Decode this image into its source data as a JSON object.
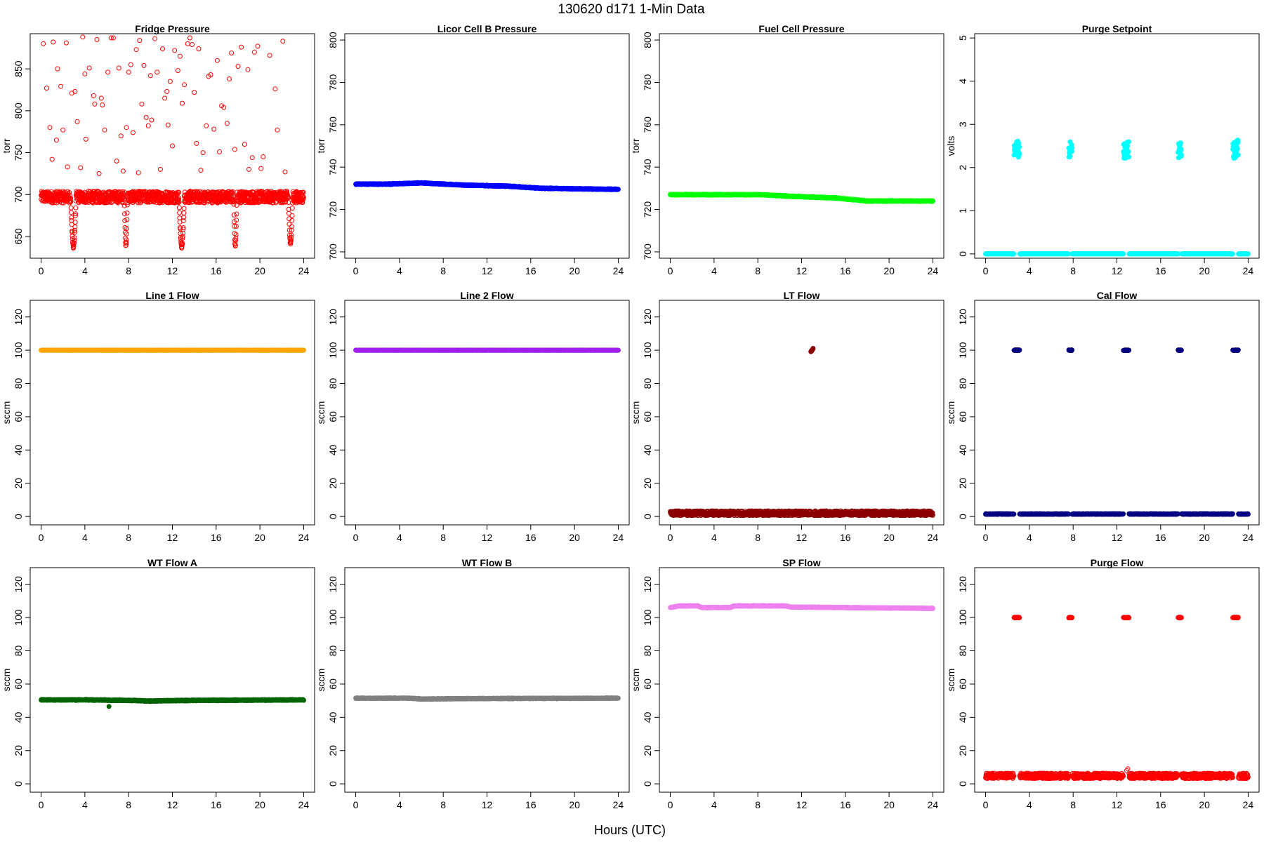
{
  "figure": {
    "title": "130620    d171    1-Min Data",
    "xlabel": "Hours (UTC)"
  },
  "chart_data": [
    {
      "type": "scatter",
      "title": "Fridge Pressure",
      "ylabel": "torr",
      "color": "#ff0000",
      "marker": "open",
      "xlim": [
        -1,
        25
      ],
      "ylim": [
        624,
        892
      ],
      "xticks": [
        0,
        4,
        8,
        12,
        16,
        20,
        24
      ],
      "yticks": [
        650,
        700,
        750,
        800,
        850
      ],
      "pattern": {
        "base": 697,
        "noise": 7,
        "noise_kind": "uniform",
        "dips": [
          {
            "start": 2.7,
            "end": 3.2,
            "min": 638
          },
          {
            "start": 7.6,
            "end": 7.9,
            "min": 640
          },
          {
            "start": 12.6,
            "end": 13.1,
            "min": 638
          },
          {
            "start": 17.6,
            "end": 17.9,
            "min": 640
          },
          {
            "start": 22.6,
            "end": 23.0,
            "min": 642
          }
        ],
        "outliers": [
          [
            0.2,
            880
          ],
          [
            0.5,
            827
          ],
          [
            0.8,
            780
          ],
          [
            1.0,
            742
          ],
          [
            1.1,
            882
          ],
          [
            1.4,
            765
          ],
          [
            1.5,
            850
          ],
          [
            1.8,
            829
          ],
          [
            2.0,
            777
          ],
          [
            2.3,
            881
          ],
          [
            2.4,
            733
          ],
          [
            2.8,
            821
          ],
          [
            3.1,
            823
          ],
          [
            3.3,
            787
          ],
          [
            3.6,
            732
          ],
          [
            3.8,
            888
          ],
          [
            4.0,
            844
          ],
          [
            4.1,
            766
          ],
          [
            4.4,
            851
          ],
          [
            4.8,
            818
          ],
          [
            4.9,
            808
          ],
          [
            5.1,
            885
          ],
          [
            5.3,
            725
          ],
          [
            5.5,
            815
          ],
          [
            5.6,
            807
          ],
          [
            5.8,
            777
          ],
          [
            6.1,
            846
          ],
          [
            6.4,
            887
          ],
          [
            6.6,
            887
          ],
          [
            6.9,
            740
          ],
          [
            7.1,
            851
          ],
          [
            7.3,
            770
          ],
          [
            7.5,
            728
          ],
          [
            7.8,
            780
          ],
          [
            8.0,
            846
          ],
          [
            8.2,
            855
          ],
          [
            8.4,
            774
          ],
          [
            8.7,
            873
          ],
          [
            8.9,
            726
          ],
          [
            9.0,
            884
          ],
          [
            9.2,
            808
          ],
          [
            9.4,
            854
          ],
          [
            9.6,
            792
          ],
          [
            9.8,
            782
          ],
          [
            10.0,
            842
          ],
          [
            10.1,
            789
          ],
          [
            10.4,
            886
          ],
          [
            10.6,
            846
          ],
          [
            10.9,
            730
          ],
          [
            11.1,
            874
          ],
          [
            11.3,
            815
          ],
          [
            11.5,
            823
          ],
          [
            11.6,
            783
          ],
          [
            11.8,
            835
          ],
          [
            12.0,
            758
          ],
          [
            12.2,
            872
          ],
          [
            12.5,
            848
          ],
          [
            12.7,
            865
          ],
          [
            12.9,
            809
          ],
          [
            13.1,
            831
          ],
          [
            13.4,
            880
          ],
          [
            13.6,
            887
          ],
          [
            13.8,
            879
          ],
          [
            14.0,
            822
          ],
          [
            14.2,
            761
          ],
          [
            14.4,
            874
          ],
          [
            14.6,
            729
          ],
          [
            14.8,
            750
          ],
          [
            15.1,
            782
          ],
          [
            15.3,
            841
          ],
          [
            15.5,
            843
          ],
          [
            15.8,
            778
          ],
          [
            16.1,
            860
          ],
          [
            16.3,
            751
          ],
          [
            16.5,
            806
          ],
          [
            16.7,
            804
          ],
          [
            17.0,
            785
          ],
          [
            17.2,
            838
          ],
          [
            17.4,
            869
          ],
          [
            17.7,
            754
          ],
          [
            18.0,
            853
          ],
          [
            18.3,
            876
          ],
          [
            18.6,
            760
          ],
          [
            18.9,
            849
          ],
          [
            19.0,
            730
          ],
          [
            19.3,
            744
          ],
          [
            19.5,
            870
          ],
          [
            19.8,
            877
          ],
          [
            20.1,
            731
          ],
          [
            20.3,
            745
          ],
          [
            20.9,
            866
          ],
          [
            21.4,
            826
          ],
          [
            21.6,
            777
          ],
          [
            22.1,
            883
          ],
          [
            22.3,
            727
          ]
        ]
      }
    },
    {
      "type": "scatter",
      "title": "Licor Cell B Pressure",
      "ylabel": "torr",
      "color": "#0000ff",
      "marker": "filled",
      "xlim": [
        -1,
        25
      ],
      "ylim": [
        697,
        803
      ],
      "xticks": [
        0,
        4,
        8,
        12,
        16,
        20,
        24
      ],
      "yticks": [
        700,
        720,
        740,
        760,
        780,
        800
      ],
      "pattern": {
        "line": [
          [
            0,
            732
          ],
          [
            3,
            732
          ],
          [
            6,
            732.5
          ],
          [
            10,
            731.5
          ],
          [
            14,
            731
          ],
          [
            17,
            730
          ],
          [
            24,
            729.5
          ]
        ],
        "noise": 0.3
      }
    },
    {
      "type": "scatter",
      "title": "Fuel Cell Pressure",
      "ylabel": "torr",
      "color": "#00ff00",
      "marker": "filled",
      "xlim": [
        -1,
        25
      ],
      "ylim": [
        697,
        803
      ],
      "xticks": [
        0,
        4,
        8,
        12,
        16,
        20,
        24
      ],
      "yticks": [
        700,
        720,
        740,
        760,
        780,
        800
      ],
      "pattern": {
        "line": [
          [
            0,
            727
          ],
          [
            5,
            727
          ],
          [
            8,
            727
          ],
          [
            12,
            726
          ],
          [
            15,
            725.5
          ],
          [
            18,
            724
          ],
          [
            24,
            724
          ]
        ],
        "noise": 0.3
      }
    },
    {
      "type": "scatter",
      "title": "Purge Setpoint",
      "ylabel": "volts",
      "color": "#00ffff",
      "marker": "filled",
      "xlim": [
        -1,
        25
      ],
      "ylim": [
        -0.1,
        5.1
      ],
      "xticks": [
        0,
        4,
        8,
        12,
        16,
        20,
        24
      ],
      "yticks": [
        0,
        1,
        2,
        3,
        4,
        5
      ],
      "pattern": {
        "base": 0,
        "noise": 0,
        "noise_kind": "none",
        "pulses": [
          {
            "start": 2.6,
            "end": 3.1,
            "from": 2.37,
            "to": 2.46
          },
          {
            "start": 7.6,
            "end": 7.9,
            "from": 2.41,
            "to": 2.39
          },
          {
            "start": 12.6,
            "end": 13.1,
            "from": 2.37,
            "to": 2.44
          },
          {
            "start": 17.6,
            "end": 17.9,
            "from": 2.42,
            "to": 2.4
          },
          {
            "start": 22.6,
            "end": 23.1,
            "from": 2.37,
            "to": 2.46
          }
        ]
      }
    },
    {
      "type": "scatter",
      "title": "Line 1 Flow",
      "ylabel": "sccm",
      "color": "#ffa500",
      "marker": "filled",
      "xlim": [
        -1,
        25
      ],
      "ylim": [
        -5,
        130
      ],
      "xticks": [
        0,
        4,
        8,
        12,
        16,
        20,
        24
      ],
      "yticks": [
        0,
        20,
        40,
        60,
        80,
        100,
        120
      ],
      "pattern": {
        "line": [
          [
            0,
            100
          ],
          [
            24,
            100
          ]
        ],
        "noise": 0.1
      }
    },
    {
      "type": "scatter",
      "title": "Line 2 Flow",
      "ylabel": "sccm",
      "color": "#a020f0",
      "marker": "filled",
      "xlim": [
        -1,
        25
      ],
      "ylim": [
        -5,
        130
      ],
      "xticks": [
        0,
        4,
        8,
        12,
        16,
        20,
        24
      ],
      "yticks": [
        0,
        20,
        40,
        60,
        80,
        100,
        120
      ],
      "pattern": {
        "line": [
          [
            0,
            100
          ],
          [
            24,
            100
          ]
        ],
        "noise": 0.1
      }
    },
    {
      "type": "scatter",
      "title": "LT Flow",
      "ylabel": "sccm",
      "color": "#8b0000",
      "marker": "open",
      "xlim": [
        -1,
        25
      ],
      "ylim": [
        -5,
        130
      ],
      "xticks": [
        0,
        4,
        8,
        12,
        16,
        20,
        24
      ],
      "yticks": [
        0,
        20,
        40,
        60,
        80,
        100,
        120
      ],
      "pattern": {
        "base": 2,
        "noise": 1.4,
        "noise_kind": "uniform",
        "pulses": [
          {
            "start": 12.85,
            "end": 13.05,
            "from": 99,
            "to": 101
          }
        ]
      }
    },
    {
      "type": "scatter",
      "title": "Cal Flow",
      "ylabel": "sccm",
      "color": "#000080",
      "marker": "filled",
      "xlim": [
        -1,
        25
      ],
      "ylim": [
        -5,
        130
      ],
      "xticks": [
        0,
        4,
        8,
        12,
        16,
        20,
        24
      ],
      "yticks": [
        0,
        20,
        40,
        60,
        80,
        100,
        120
      ],
      "pattern": {
        "base": 1.5,
        "noise": 0.2,
        "noise_kind": "uniform",
        "pulses": [
          {
            "start": 2.6,
            "end": 3.1,
            "from": 100,
            "to": 100
          },
          {
            "start": 7.6,
            "end": 7.9,
            "from": 100,
            "to": 100
          },
          {
            "start": 12.6,
            "end": 13.1,
            "from": 100,
            "to": 100
          },
          {
            "start": 17.6,
            "end": 17.9,
            "from": 100,
            "to": 100
          },
          {
            "start": 22.6,
            "end": 23.1,
            "from": 100,
            "to": 100
          }
        ]
      }
    },
    {
      "type": "scatter",
      "title": "WT Flow A",
      "ylabel": "sccm",
      "color": "#006400",
      "marker": "filled",
      "xlim": [
        -1,
        25
      ],
      "ylim": [
        -5,
        130
      ],
      "xticks": [
        0,
        4,
        8,
        12,
        16,
        20,
        24
      ],
      "yticks": [
        0,
        20,
        40,
        60,
        80,
        100,
        120
      ],
      "pattern": {
        "line": [
          [
            0,
            50.5
          ],
          [
            4,
            50.5
          ],
          [
            8,
            50.2
          ],
          [
            10,
            49.8
          ],
          [
            14,
            50.2
          ],
          [
            24,
            50.5
          ]
        ],
        "noise": 0.4,
        "outliers": [
          [
            6.2,
            46.5
          ]
        ]
      }
    },
    {
      "type": "scatter",
      "title": "WT Flow B",
      "ylabel": "sccm",
      "color": "#808080",
      "marker": "filled",
      "xlim": [
        -1,
        25
      ],
      "ylim": [
        -5,
        130
      ],
      "xticks": [
        0,
        4,
        8,
        12,
        16,
        20,
        24
      ],
      "yticks": [
        0,
        20,
        40,
        60,
        80,
        100,
        120
      ],
      "pattern": {
        "line": [
          [
            0,
            51.5
          ],
          [
            5,
            51.5
          ],
          [
            6,
            51
          ],
          [
            9,
            51.2
          ],
          [
            12,
            51.3
          ],
          [
            24,
            51.5
          ]
        ],
        "noise": 0.3
      }
    },
    {
      "type": "scatter",
      "title": "SP Flow",
      "ylabel": "sccm",
      "color": "#ee82ee",
      "marker": "filled",
      "xlim": [
        -1,
        25
      ],
      "ylim": [
        -5,
        130
      ],
      "xticks": [
        0,
        4,
        8,
        12,
        16,
        20,
        24
      ],
      "yticks": [
        0,
        20,
        40,
        60,
        80,
        100,
        120
      ],
      "pattern": {
        "line": [
          [
            0,
            106
          ],
          [
            0.8,
            107
          ],
          [
            2.5,
            107
          ],
          [
            2.9,
            106
          ],
          [
            5.5,
            106
          ],
          [
            5.8,
            107
          ],
          [
            10.5,
            107
          ],
          [
            11,
            106.3
          ],
          [
            16,
            106
          ],
          [
            24,
            105.5
          ],
          [
            24,
            107
          ]
        ],
        "noise": 0.3
      }
    },
    {
      "type": "scatter",
      "title": "Purge Flow",
      "ylabel": "sccm",
      "color": "#ff0000",
      "marker": "open",
      "xlim": [
        -1,
        25
      ],
      "ylim": [
        -5,
        130
      ],
      "xticks": [
        0,
        4,
        8,
        12,
        16,
        20,
        24
      ],
      "yticks": [
        0,
        20,
        40,
        60,
        80,
        100,
        120
      ],
      "pattern": {
        "base": 4.8,
        "noise": 1.6,
        "noise_kind": "uniform",
        "pulses": [
          {
            "start": 2.6,
            "end": 3.1,
            "from": 100,
            "to": 100
          },
          {
            "start": 7.6,
            "end": 7.9,
            "from": 100,
            "to": 100
          },
          {
            "start": 12.6,
            "end": 13.1,
            "from": 100,
            "to": 100
          },
          {
            "start": 17.6,
            "end": 17.9,
            "from": 100,
            "to": 100
          },
          {
            "start": 22.6,
            "end": 23.1,
            "from": 100,
            "to": 100
          }
        ],
        "outliers": [
          [
            12.9,
            8
          ],
          [
            13.0,
            9
          ]
        ]
      }
    }
  ]
}
